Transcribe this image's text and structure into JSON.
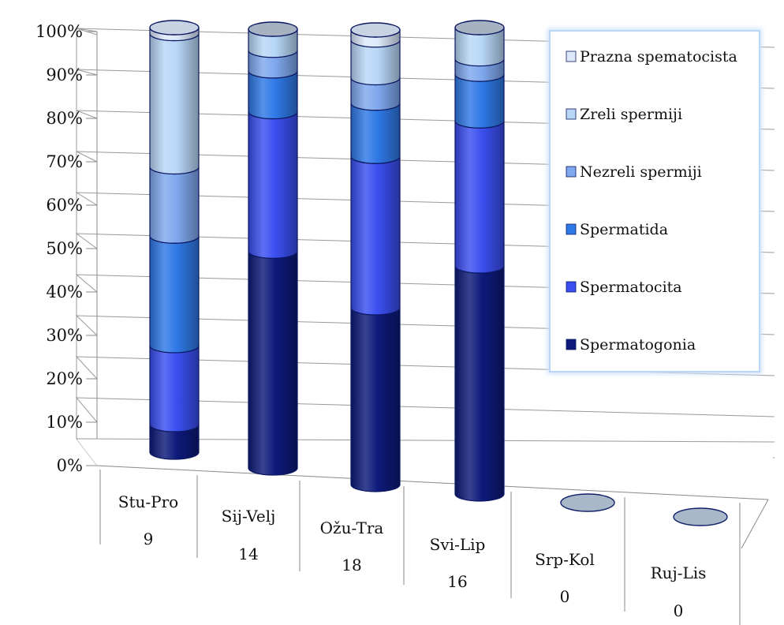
{
  "chart_data": {
    "type": "bar",
    "subtype": "3d-stacked-100-percent-cylinder",
    "title": "",
    "xlabel": "",
    "ylabel": "",
    "ylim": [
      0,
      100
    ],
    "y_ticks": [
      "0%",
      "10%",
      "20%",
      "30%",
      "40%",
      "50%",
      "60%",
      "70%",
      "80%",
      "90%",
      "100%"
    ],
    "grid": true,
    "legend_position": "right",
    "categories": [
      {
        "name": "Stu-Pro",
        "count": "9"
      },
      {
        "name": "Sij-Velj",
        "count": "14"
      },
      {
        "name": "Ožu-Tra",
        "count": "18"
      },
      {
        "name": "Svi-Lip",
        "count": "16"
      },
      {
        "name": "Srp-Kol",
        "count": "0"
      },
      {
        "name": "Ruj-Lis",
        "count": "0"
      }
    ],
    "series": [
      {
        "name": "Spermatogonia",
        "color": "#0d1a7a",
        "values": [
          6.5,
          49.4,
          38.9,
          48.9,
          0,
          0
        ]
      },
      {
        "name": "Spermatocita",
        "color": "#3b4ff0",
        "values": [
          18.6,
          31.8,
          33.3,
          31.1,
          0,
          0
        ]
      },
      {
        "name": "Spermatida",
        "color": "#2f79e6",
        "values": [
          25.8,
          9.3,
          11.7,
          10.0,
          0,
          0
        ]
      },
      {
        "name": "Nezreli spermiji",
        "color": "#7fa8ee",
        "values": [
          16.3,
          4.7,
          5.6,
          3.3,
          0,
          0
        ]
      },
      {
        "name": "Zreli spermiji",
        "color": "#b8d7f7",
        "values": [
          31.4,
          4.8,
          8.3,
          6.7,
          0,
          0
        ]
      },
      {
        "name": "Prazna spematocista",
        "color": "#dde9fb",
        "values": [
          1.4,
          0,
          2.2,
          0,
          0,
          0
        ]
      }
    ],
    "empty_marker_color": "#a9b8c8"
  }
}
